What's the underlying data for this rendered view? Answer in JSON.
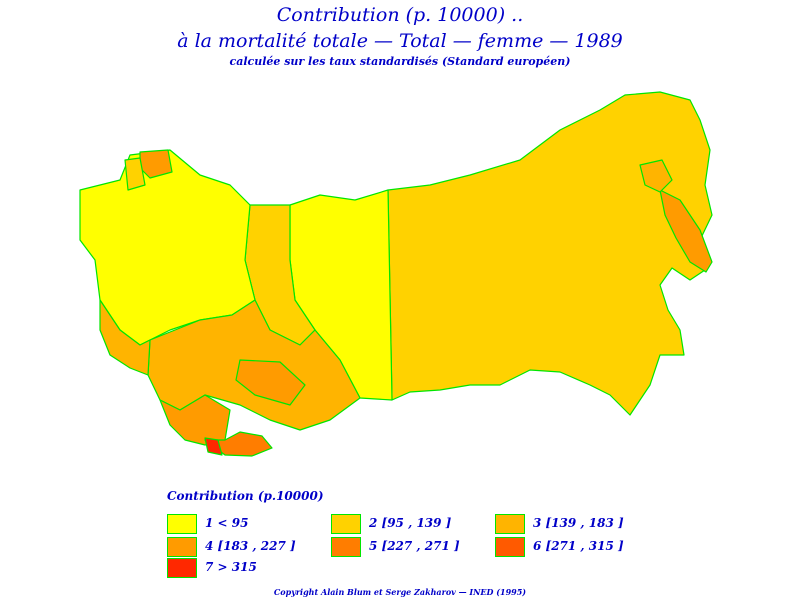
{
  "title": {
    "line1": "Contribution  (p. 10000) ..",
    "line2": "à  la  mortalité  totale  —  Total  —  femme  —  1989",
    "line3": "calculée  sur  les  taux  standardisés  (Standard  européen)"
  },
  "legend": {
    "title": "Contribution  (p.10000)",
    "items": [
      {
        "label": "1  <  95",
        "color": "#ffff00"
      },
      {
        "label": "2  [95  ,  139  ]",
        "color": "#ffd200"
      },
      {
        "label": "3  [139  ,  183  ]",
        "color": "#ffb400"
      },
      {
        "label": "4  [183  ,  227  ]",
        "color": "#ff9b00"
      },
      {
        "label": "5  [227  ,  271  ]",
        "color": "#ff7d00"
      },
      {
        "label": "6  [271  ,  315  ]",
        "color": "#ff5a00"
      },
      {
        "label": "7  >  315",
        "color": "#ff2800"
      }
    ]
  },
  "map": {
    "border_color": "#00e600"
  },
  "footer": "Copyright  Alain  Blum  et  Serge  Zakharov  —  INED  (1995)"
}
